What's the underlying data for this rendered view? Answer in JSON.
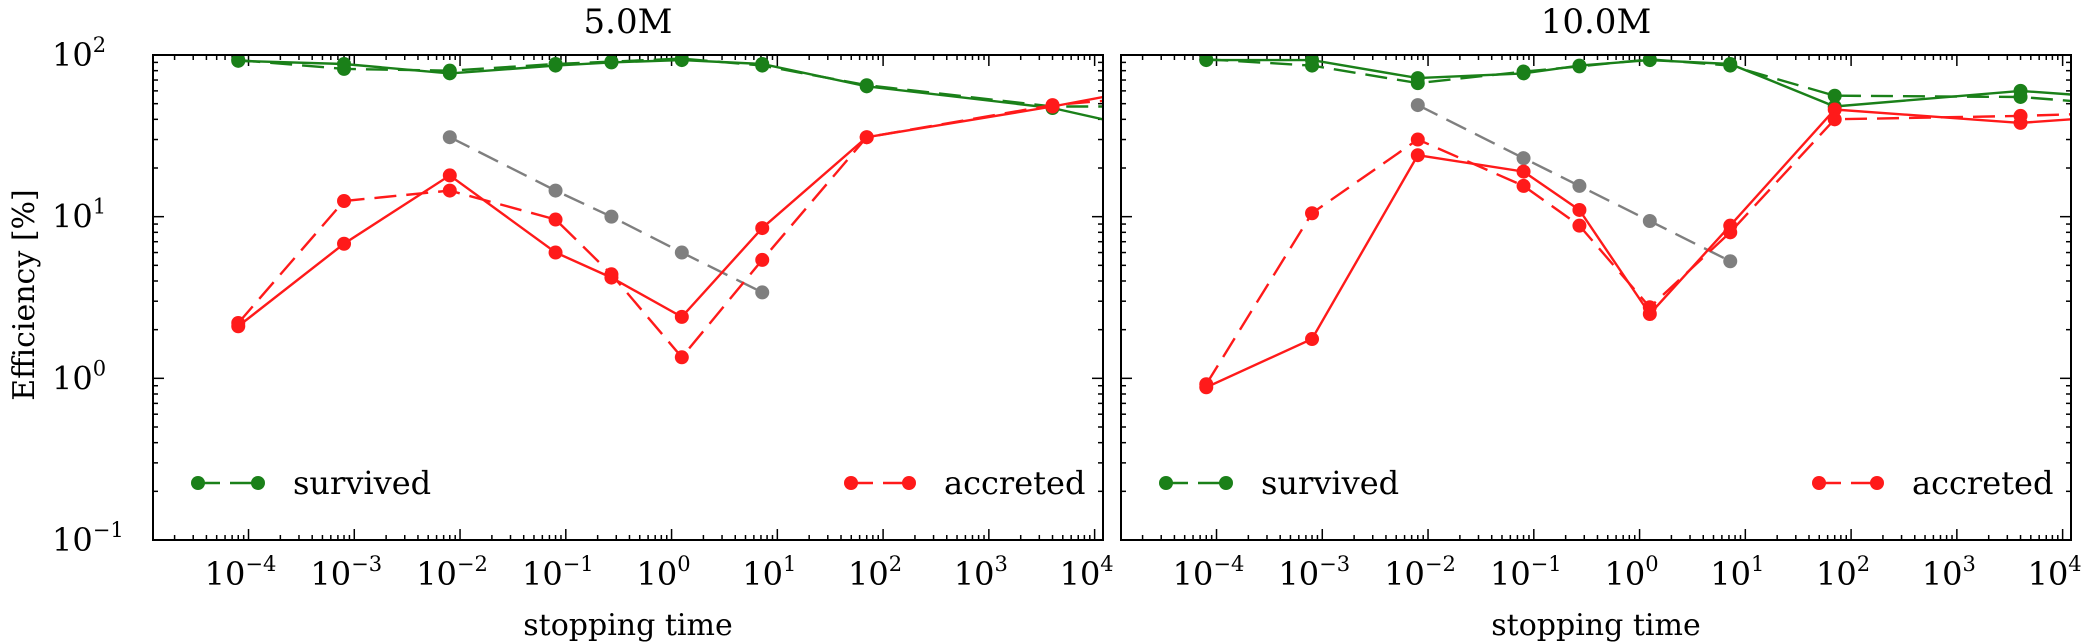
{
  "figure": {
    "ylabel": "Efficiency [%]",
    "legend": {
      "survived": "survived",
      "accreted": "accreted"
    },
    "colors": {
      "survived": "#1a8019",
      "accreted": "#ff1a1a",
      "gray": "#7f7f7f"
    }
  },
  "chart_data": [
    {
      "type": "line",
      "title": "5.0M",
      "xlabel": "stopping time",
      "ylabel": "Efficiency [%]",
      "xscale": "log",
      "yscale": "log",
      "xlim": [
        1.25e-05,
        12000
      ],
      "ylim": [
        0.1,
        100
      ],
      "x_ticks": [
        {
          "base": "10",
          "exp": "−4"
        },
        {
          "base": "10",
          "exp": "−3"
        },
        {
          "base": "10",
          "exp": "−2"
        },
        {
          "base": "10",
          "exp": "−1"
        },
        {
          "base": "10",
          "exp": "0"
        },
        {
          "base": "10",
          "exp": "1"
        },
        {
          "base": "10",
          "exp": "2"
        },
        {
          "base": "10",
          "exp": "3"
        },
        {
          "base": "10",
          "exp": "4"
        }
      ],
      "y_ticks": [
        {
          "base": "10",
          "exp": "−1"
        },
        {
          "base": "10",
          "exp": "0"
        },
        {
          "base": "10",
          "exp": "1"
        },
        {
          "base": "10",
          "exp": "2"
        }
      ],
      "legend": [
        "survived",
        "accreted"
      ],
      "series": [
        {
          "name": "survived (solid)",
          "group": "survived",
          "style": "solid",
          "x": [
            8e-05,
            0.0008,
            0.008,
            0.08,
            0.27,
            1.25,
            7.2,
            70,
            4000,
            12000
          ],
          "y": [
            92,
            88,
            77,
            86,
            90,
            93,
            88,
            64,
            47,
            40
          ],
          "markers": [
            true,
            true,
            true,
            true,
            true,
            true,
            true,
            true,
            true,
            false
          ]
        },
        {
          "name": "survived (dashed)",
          "group": "survived",
          "style": "dashed",
          "x": [
            8e-05,
            0.0008,
            0.008,
            0.08,
            0.27,
            1.25,
            7.2,
            70,
            4000,
            12000
          ],
          "y": [
            93,
            82,
            80,
            88,
            91,
            95,
            86,
            65,
            48,
            48
          ],
          "markers": [
            true,
            true,
            true,
            true,
            true,
            true,
            true,
            true,
            true,
            false
          ]
        },
        {
          "name": "gray (dashed)",
          "group": "gray",
          "style": "dashed",
          "x": [
            0.008,
            0.08,
            0.27,
            1.25,
            7.2
          ],
          "y": [
            31,
            14.5,
            10,
            6,
            3.4
          ],
          "markers": [
            true,
            true,
            true,
            true,
            true
          ]
        },
        {
          "name": "accreted (solid)",
          "group": "accreted",
          "style": "solid",
          "x": [
            8e-05,
            0.0008,
            0.008,
            0.08,
            0.27,
            1.25,
            7.2,
            70,
            4000,
            12000
          ],
          "y": [
            2.1,
            6.8,
            18,
            6,
            4.2,
            2.4,
            8.5,
            31,
            48,
            55
          ],
          "markers": [
            true,
            true,
            true,
            true,
            true,
            true,
            true,
            true,
            true,
            false
          ]
        },
        {
          "name": "accreted (dashed)",
          "group": "accreted",
          "style": "dashed",
          "x": [
            8e-05,
            0.0008,
            0.008,
            0.08,
            0.27,
            1.25,
            7.2,
            70,
            4000,
            12000
          ],
          "y": [
            2.2,
            12.5,
            14.5,
            9.6,
            4.4,
            1.35,
            5.4,
            31,
            49,
            52
          ],
          "markers": [
            true,
            true,
            true,
            true,
            true,
            true,
            true,
            true,
            true,
            false
          ]
        }
      ]
    },
    {
      "type": "line",
      "title": "10.0M",
      "xlabel": "stopping time",
      "ylabel": "Efficiency [%]",
      "xscale": "log",
      "yscale": "log",
      "xlim": [
        1.25e-05,
        12000
      ],
      "ylim": [
        0.1,
        100
      ],
      "x_ticks": [
        {
          "base": "10",
          "exp": "−4"
        },
        {
          "base": "10",
          "exp": "−3"
        },
        {
          "base": "10",
          "exp": "−2"
        },
        {
          "base": "10",
          "exp": "−1"
        },
        {
          "base": "10",
          "exp": "0"
        },
        {
          "base": "10",
          "exp": "1"
        },
        {
          "base": "10",
          "exp": "2"
        },
        {
          "base": "10",
          "exp": "3"
        },
        {
          "base": "10",
          "exp": "4"
        }
      ],
      "y_ticks": [
        {
          "base": "10",
          "exp": "−1"
        },
        {
          "base": "10",
          "exp": "0"
        },
        {
          "base": "10",
          "exp": "1"
        },
        {
          "base": "10",
          "exp": "2"
        }
      ],
      "legend": [
        "survived",
        "accreted"
      ],
      "series": [
        {
          "name": "survived (solid)",
          "group": "survived",
          "style": "solid",
          "x": [
            8e-05,
            0.0008,
            0.008,
            0.08,
            0.27,
            1.25,
            7.2,
            70,
            4000,
            12000
          ],
          "y": [
            93,
            93,
            72,
            77,
            86,
            93,
            88,
            48,
            60,
            57
          ],
          "markers": [
            true,
            true,
            true,
            true,
            true,
            true,
            true,
            true,
            true,
            false
          ]
        },
        {
          "name": "survived (dashed)",
          "group": "survived",
          "style": "dashed",
          "x": [
            8e-05,
            0.0008,
            0.008,
            0.08,
            0.27,
            1.25,
            7.2,
            70,
            4000,
            12000
          ],
          "y": [
            94,
            86,
            67,
            79,
            85,
            94,
            86,
            56,
            55,
            52
          ],
          "markers": [
            true,
            true,
            true,
            true,
            true,
            true,
            true,
            true,
            true,
            false
          ]
        },
        {
          "name": "gray (dashed)",
          "group": "gray",
          "style": "dashed",
          "x": [
            0.008,
            0.08,
            0.27,
            1.25,
            7.2
          ],
          "y": [
            49,
            23,
            15.5,
            9.4,
            5.3
          ],
          "markers": [
            true,
            true,
            true,
            true,
            true
          ]
        },
        {
          "name": "accreted (solid)",
          "group": "accreted",
          "style": "solid",
          "x": [
            8e-05,
            0.0008,
            0.008,
            0.08,
            0.27,
            1.25,
            7.2,
            70,
            4000,
            12000
          ],
          "y": [
            0.88,
            1.75,
            24,
            19,
            11,
            2.5,
            8.8,
            46,
            38,
            40
          ],
          "markers": [
            true,
            true,
            true,
            true,
            true,
            true,
            true,
            true,
            true,
            false
          ]
        },
        {
          "name": "accreted (dashed)",
          "group": "accreted",
          "style": "dashed",
          "x": [
            8e-05,
            0.0008,
            0.008,
            0.08,
            0.27,
            1.25,
            7.2,
            70,
            4000,
            12000
          ],
          "y": [
            0.92,
            10.5,
            30,
            15.5,
            8.8,
            2.75,
            8,
            40,
            42,
            43
          ],
          "markers": [
            true,
            true,
            true,
            true,
            true,
            true,
            true,
            true,
            true,
            false
          ]
        }
      ]
    }
  ]
}
